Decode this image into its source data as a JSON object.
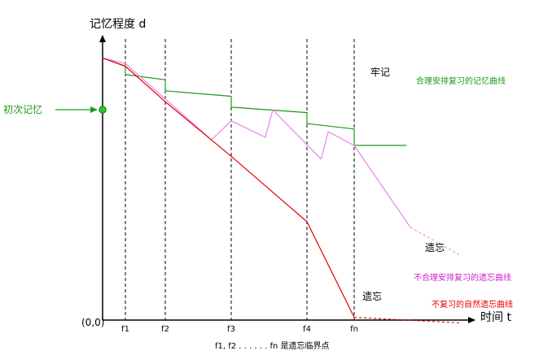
{
  "chart_data": {
    "type": "line",
    "ylabel": "记忆程度 d",
    "xlabel": "时间 t",
    "origin_label": "(0,0)",
    "x_ticks": [
      "f1",
      "f2",
      "f3",
      "f4",
      "fn"
    ],
    "footnote": "f1, f2 . . . . . . fn 是遗忘临界点",
    "first_memory_label": "初次记忆",
    "colors": {
      "green": "#1a9a1a",
      "pink": "#ee82ee",
      "red": "#e60000",
      "axis": "#000000",
      "guide": "#000000"
    },
    "series": [
      {
        "name": "合理安排复习的记忆曲线",
        "color": "#1a9a1a",
        "end_label": "牢记",
        "points": [
          [
            0,
            96
          ],
          [
            1,
            93
          ],
          [
            1,
            90
          ],
          [
            2,
            88
          ],
          [
            2,
            84
          ],
          [
            3,
            82
          ],
          [
            3,
            78
          ],
          [
            4,
            76
          ],
          [
            4,
            72
          ],
          [
            5,
            70
          ],
          [
            5,
            64
          ],
          [
            5.7,
            64
          ]
        ]
      },
      {
        "name": "不合理安排复习的遗忘曲线",
        "color": "#ee82ee",
        "end_label": "遗忘",
        "points": [
          [
            0,
            96
          ],
          [
            1,
            94
          ],
          [
            2,
            81
          ],
          [
            2.7,
            66
          ],
          [
            3,
            73
          ],
          [
            3.45,
            67
          ],
          [
            3.55,
            77
          ],
          [
            4.3,
            59
          ],
          [
            4.45,
            69
          ],
          [
            5,
            64
          ],
          [
            5.75,
            34
          ]
        ],
        "dashed_tail": [
          [
            5.75,
            34
          ],
          [
            6.4,
            24
          ]
        ]
      },
      {
        "name": "不复习的自然遗忘曲线",
        "color": "#e60000",
        "end_label": "遗忘",
        "points": [
          [
            0,
            96
          ],
          [
            1,
            93
          ],
          [
            2,
            80
          ],
          [
            3,
            60
          ],
          [
            4,
            36
          ],
          [
            5,
            1
          ]
        ],
        "dashed_tail": [
          [
            5,
            1
          ],
          [
            6.4,
            -1
          ]
        ]
      }
    ]
  }
}
